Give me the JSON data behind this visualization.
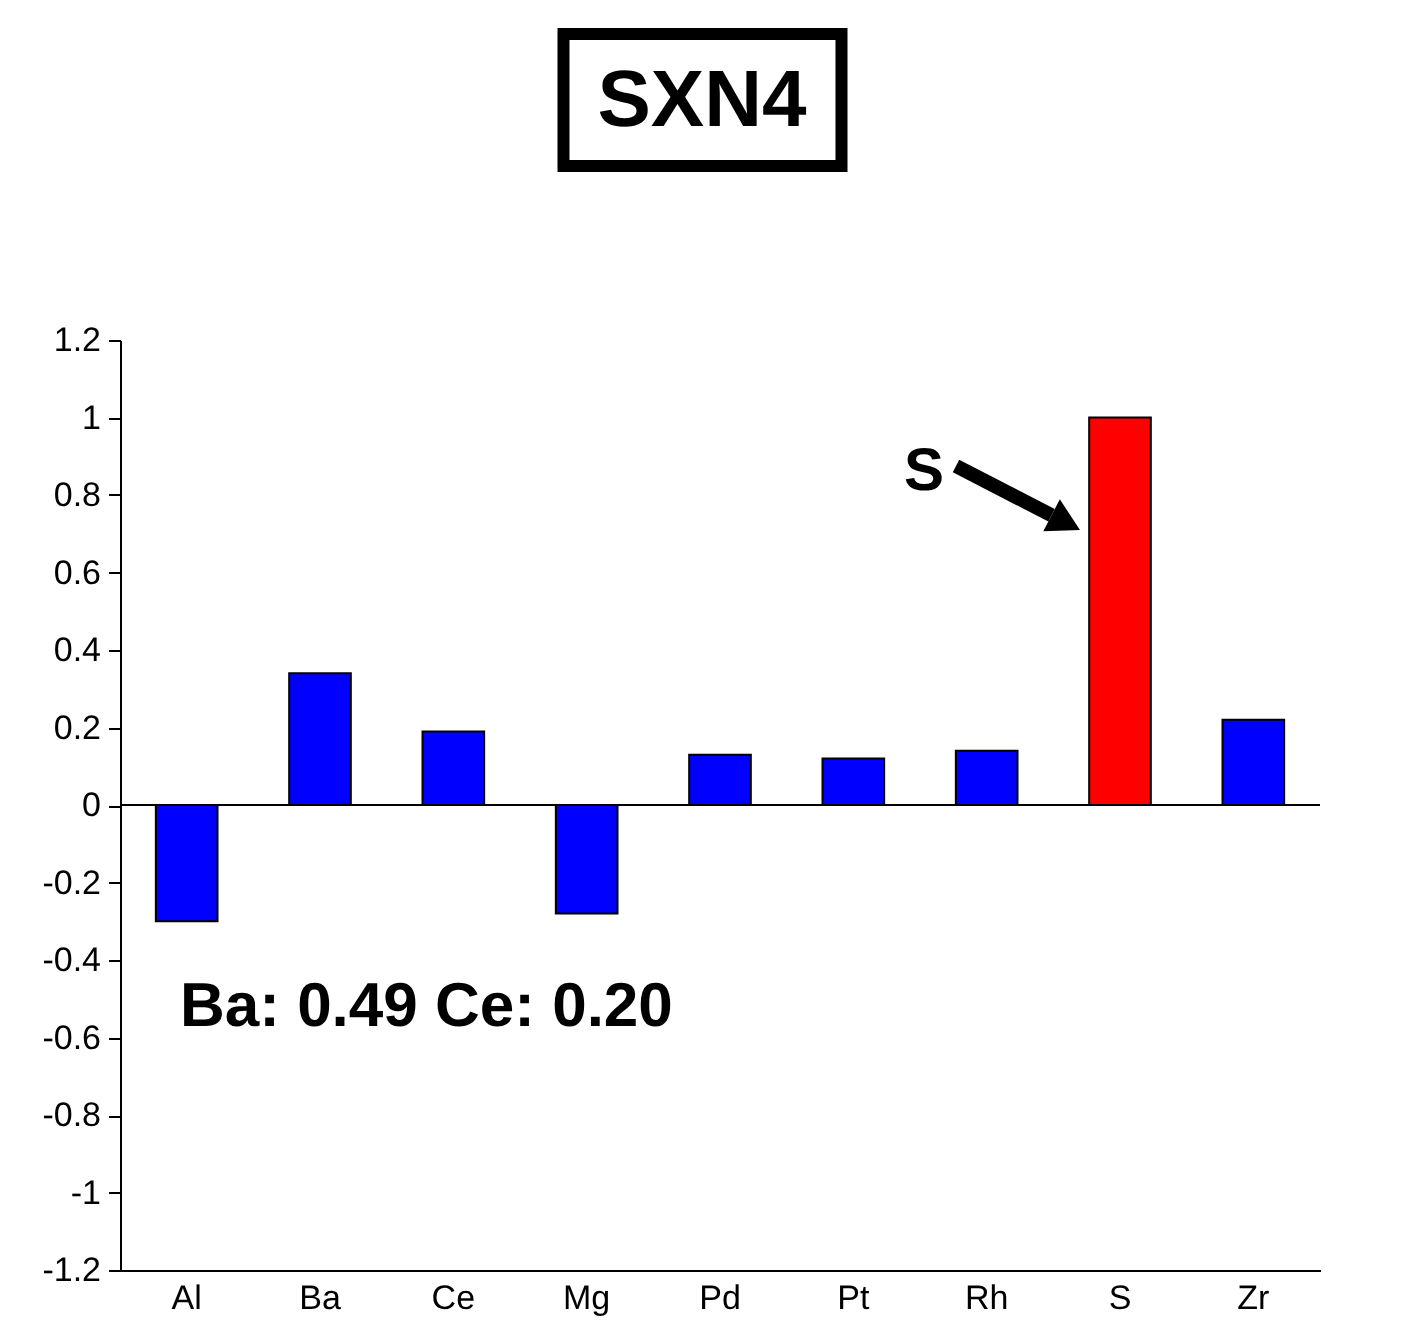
{
  "chart_data": {
    "type": "bar",
    "title": "SXN4",
    "categories": [
      "Al",
      "Ba",
      "Ce",
      "Mg",
      "Pd",
      "Pt",
      "Rh",
      "S",
      "Zr"
    ],
    "values": [
      -0.3,
      0.34,
      0.19,
      -0.28,
      0.13,
      0.12,
      0.14,
      1.0,
      0.22
    ],
    "colors": [
      "#0000ff",
      "#0000ff",
      "#0000ff",
      "#0000ff",
      "#0000ff",
      "#0000ff",
      "#0000ff",
      "#ff0000",
      "#0000ff"
    ],
    "ylim": [
      -1.2,
      1.2
    ],
    "yticks": [
      -1.2,
      -1,
      -0.8,
      -0.6,
      -0.4,
      -0.2,
      0,
      0.2,
      0.4,
      0.6,
      0.8,
      1,
      1.2
    ],
    "ref_lines": [
      {
        "axis": "y",
        "value": 0,
        "color": "#000000"
      }
    ],
    "annotations": [
      "S",
      "Ba: 0.49  Ce: 0.20"
    ]
  }
}
